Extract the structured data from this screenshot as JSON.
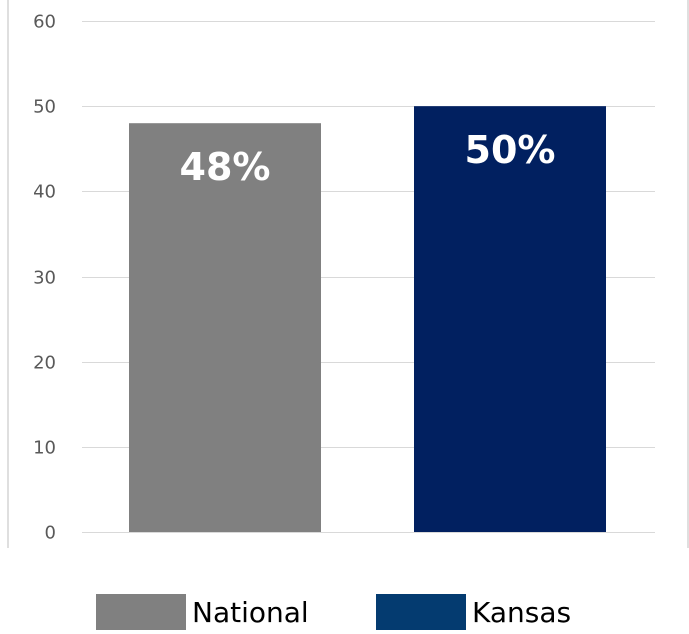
{
  "chart_data": {
    "type": "bar",
    "categories": [
      "National",
      "Kansas"
    ],
    "values": [
      48,
      50
    ],
    "data_labels": [
      "48%",
      "50%"
    ],
    "ylim": [
      0,
      60
    ],
    "yticks": [
      "0",
      "10",
      "20",
      "30",
      "40",
      "50",
      "60"
    ],
    "grid": true,
    "legend_position": "bottom",
    "colors": {
      "National": "#808080",
      "Kansas": "#012060",
      "legend_kansas_swatch": "#043B70",
      "grid": "#d9d9d9",
      "frame": "#bfbfbf"
    }
  },
  "legend": {
    "items": [
      {
        "label": "National",
        "color": "#808080"
      },
      {
        "label": "Kansas",
        "color": "#043B70"
      }
    ]
  }
}
